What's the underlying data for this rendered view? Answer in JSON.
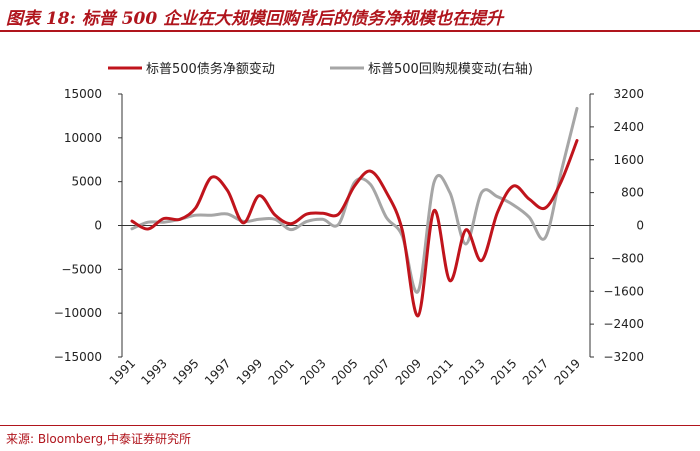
{
  "header": {
    "title": "图表 18:   标普 500 企业在大规模回购背后的债务净规模也在提升"
  },
  "footer": {
    "source": "来源: Bloomberg,中泰证券研究所"
  },
  "colors": {
    "accent": "#b0151d",
    "series1": "#c0141c",
    "series2": "#a6a6a6"
  },
  "chart_data": {
    "type": "line",
    "title": "标普 500 企业在大规模回购背后的债务净规模也在提升",
    "x": [
      1991,
      1992,
      1993,
      1994,
      1995,
      1996,
      1997,
      1998,
      1999,
      2000,
      2001,
      2002,
      2003,
      2004,
      2005,
      2006,
      2007,
      2008,
      2009,
      2010,
      2011,
      2012,
      2013,
      2014,
      2015,
      2016,
      2017,
      2018,
      2019
    ],
    "x_tick_labels": [
      "1991",
      "1993",
      "1995",
      "1997",
      "1999",
      "2001",
      "2003",
      "2005",
      "2007",
      "2009",
      "2011",
      "2013",
      "2015",
      "2017",
      "2019"
    ],
    "left_axis": {
      "range": [
        -15000,
        15000
      ],
      "ticks": [
        "15000",
        "10000",
        "5000",
        "0",
        "−5000",
        "−10000",
        "−15000"
      ]
    },
    "right_axis": {
      "range": [
        -3200,
        3200
      ],
      "ticks": [
        "3200",
        "2400",
        "1600",
        "800",
        "0",
        "−800",
        "−1600",
        "−2400",
        "−3200"
      ]
    },
    "series": [
      {
        "name": "标普500债务净额变动",
        "axis": "left",
        "values": [
          500,
          -400,
          800,
          700,
          2000,
          5500,
          4000,
          300,
          3400,
          1200,
          200,
          1300,
          1400,
          1300,
          4500,
          6200,
          3800,
          -500,
          -10300,
          1700,
          -6300,
          -500,
          -4000,
          1500,
          4500,
          3000,
          2000,
          5000,
          9700
        ]
      },
      {
        "name": "标普500回购规模变动(右轴)",
        "axis": "right",
        "values": [
          -80,
          80,
          80,
          150,
          250,
          250,
          280,
          100,
          150,
          150,
          -100,
          100,
          150,
          30,
          1050,
          1000,
          200,
          -250,
          -1600,
          1050,
          800,
          -450,
          800,
          700,
          500,
          200,
          -300,
          1300,
          2850
        ]
      }
    ],
    "legend_position": "top"
  }
}
